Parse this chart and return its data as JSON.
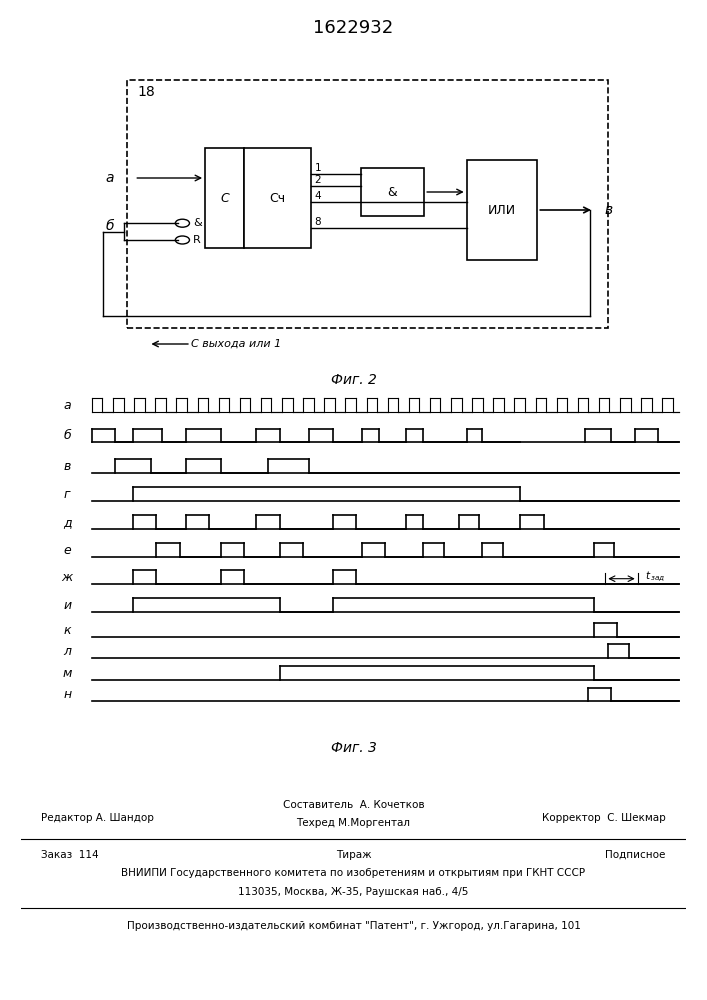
{
  "title": "1622932",
  "fig2_caption": "Фиг. 2",
  "fig3_caption": "Фиг. 3",
  "background_color": "#ffffff",
  "signal_labels": [
    "а",
    "б",
    "в",
    "г",
    "д",
    "е",
    "ж",
    "и",
    "к",
    "л",
    "м",
    "н"
  ],
  "footer_line1_left": "Редактор А. Шандор",
  "footer_line1_center_top": "Составитель  А. Кочетков",
  "footer_line1_center_bot": "Техред М.Моргентал",
  "footer_line1_right": "Корректор  С. Шекмар",
  "footer_line2_left": "Заказ  114",
  "footer_line2_center": "Тираж",
  "footer_line2_right": "Подписное",
  "footer_line3": "ВНИИПИ Государственного комитета по изобретениям и открытиям при ГКНТ СССР",
  "footer_line4": "113035, Москва, Ж-35, Раушская наб., 4/5",
  "footer_line5": "Производственно-издательский комбинат \"Патент\", г. Ужгород, ул.Гагарина, 101",
  "schematic_label_18": "18",
  "schematic_label_a": "а",
  "schematic_label_b": "б",
  "schematic_label_out": "в",
  "schematic_label_cu": "Сч",
  "schematic_label_c": "С",
  "schematic_label_and": "&",
  "schematic_label_r": "R",
  "schematic_label_or": "ИЛИ",
  "schematic_label_1": "1",
  "schematic_label_2": "2",
  "schematic_label_4": "4",
  "schematic_label_8": "8",
  "schematic_label_feedback": "С выхода или 1"
}
